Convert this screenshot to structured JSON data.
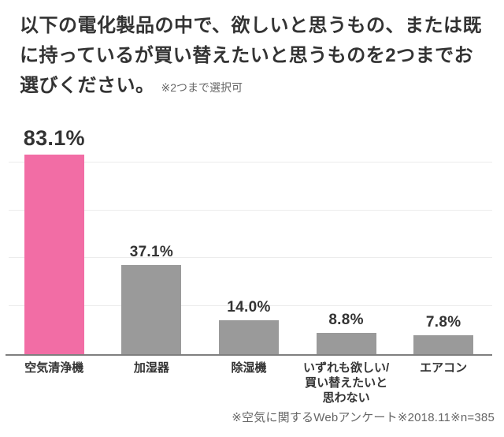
{
  "header": {
    "title": "以下の電化製品の中で、欲しいと思うもの、または既に持っているが買い替えたいと思うものを2つまでお選びください。",
    "note": "※2つまで選択可"
  },
  "footer": {
    "source": "※空気に関するWebアンケート※2018.11※n=385"
  },
  "colors": {
    "highlight_bar": "#f26da5",
    "default_bar": "#9a9a9a",
    "title_text": "#333333",
    "muted_text": "#666666",
    "gridline": "#ececec",
    "axis_line": "#7f7f7f"
  },
  "chart_data": {
    "type": "bar",
    "title": "以下の電化製品の中で、欲しいと思うもの、または既に持っているが買い替えたいと思うものを2つまでお選びください。",
    "subtitle": "※2つまで選択可",
    "categories": [
      "空気清浄機",
      "加湿器",
      "除湿機",
      "いずれも欲しい/\n買い替えたいと\n思わない",
      "エアコン"
    ],
    "values": [
      83.1,
      37.1,
      14.0,
      8.8,
      7.8
    ],
    "value_labels": [
      "83.1%",
      "37.1%",
      "14.0%",
      "8.8%",
      "7.8%"
    ],
    "bar_colors": [
      "#f26da5",
      "#9a9a9a",
      "#9a9a9a",
      "#9a9a9a",
      "#9a9a9a"
    ],
    "highlight_index": 0,
    "xlabel": "",
    "ylabel": "",
    "ylim": [
      0,
      100
    ],
    "gridline_values": [
      20,
      40,
      60,
      80
    ],
    "grid": true,
    "legend": false,
    "annotation": "※空気に関するWebアンケート※2018.11※n=385"
  }
}
